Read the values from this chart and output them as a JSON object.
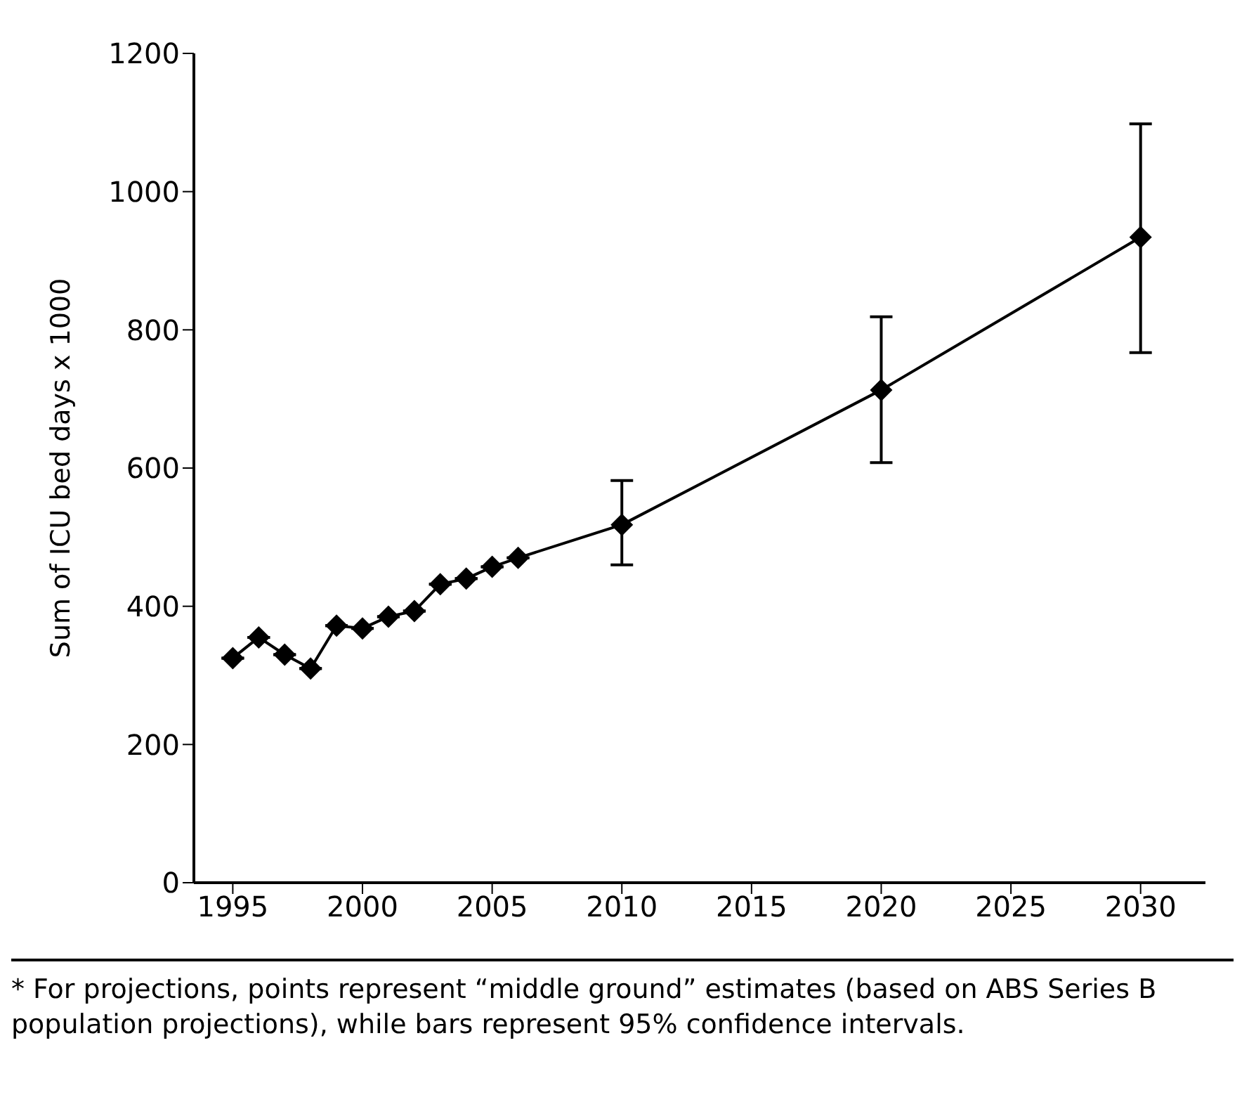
{
  "chart_data": {
    "type": "line",
    "ylabel": "Sum of ICU bed days x 1000",
    "x": [
      1995,
      1996,
      1997,
      1998,
      1999,
      2000,
      2001,
      2002,
      2003,
      2004,
      2005,
      2006,
      2010,
      2020,
      2030
    ],
    "values": [
      325,
      355,
      330,
      310,
      372,
      368,
      385,
      393,
      432,
      440,
      457,
      470,
      518,
      713,
      934
    ],
    "errors": [
      null,
      null,
      null,
      null,
      null,
      null,
      null,
      null,
      null,
      null,
      null,
      null,
      [
        460,
        582
      ],
      [
        608,
        819
      ],
      [
        767,
        1098
      ]
    ],
    "color": "#000000",
    "marker": "diamond",
    "line_style": "solid",
    "xlim": [
      1993.5,
      2032.5
    ],
    "xticks": [
      1995,
      2000,
      2005,
      2010,
      2015,
      2020,
      2025,
      2030
    ],
    "ylim": [
      0,
      1200
    ],
    "yticks": [
      0,
      200,
      400,
      600,
      800,
      1000,
      1200
    ],
    "grid": false,
    "legend": false,
    "annotations": [
      "* For projections, points represent “middle ground” estimates (based on ABS Series B population projections), while bars represent 95% confidence intervals."
    ]
  }
}
